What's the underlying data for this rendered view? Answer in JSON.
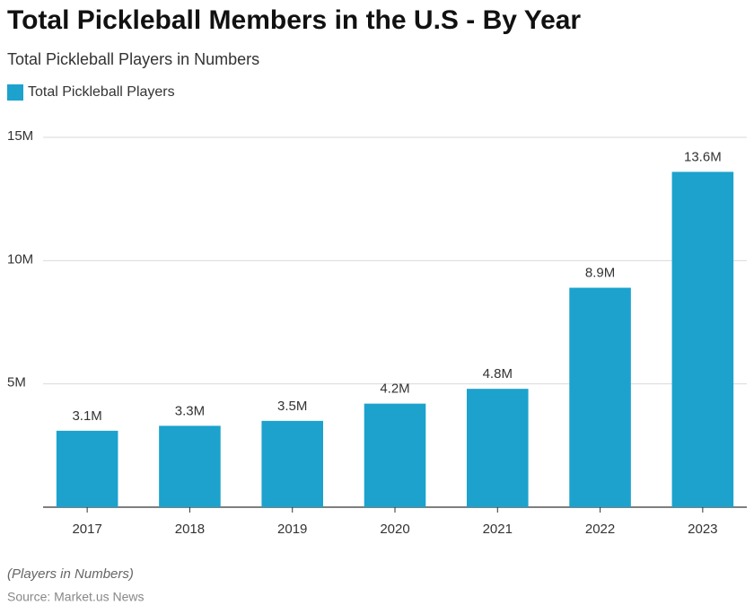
{
  "chart_data": {
    "type": "bar",
    "title": "Total Pickleball Members in the U.S - By Year",
    "subtitle": "Total Pickleball Players in Numbers",
    "series": [
      {
        "name": "Total Pickleball Players",
        "color": "#1ca2cd",
        "values": [
          3100000,
          3300000,
          3500000,
          4200000,
          4800000,
          8900000,
          13600000
        ],
        "value_labels": [
          "3.1M",
          "3.3M",
          "3.5M",
          "4.2M",
          "4.8M",
          "8.9M",
          "13.6M"
        ]
      }
    ],
    "categories": [
      "2017",
      "2018",
      "2019",
      "2020",
      "2021",
      "2022",
      "2023"
    ],
    "ylim": [
      0,
      15000000
    ],
    "yticks": [
      {
        "value": 5000000,
        "label": "5M"
      },
      {
        "value": 10000000,
        "label": "10M"
      },
      {
        "value": 15000000,
        "label": "15M"
      }
    ],
    "grid": true,
    "note": "(Players in Numbers)",
    "source": "Source: Market.us News"
  }
}
